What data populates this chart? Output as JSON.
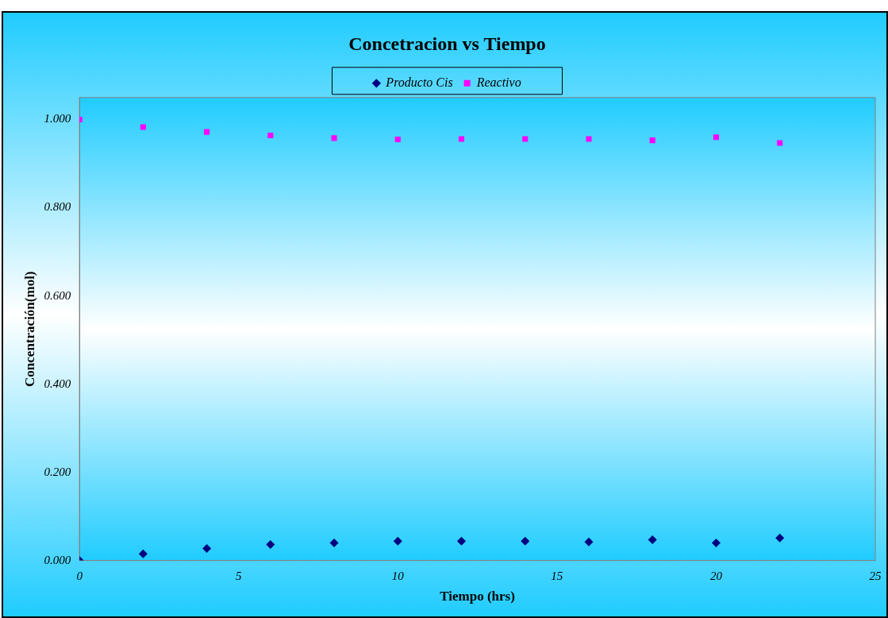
{
  "chart_data": {
    "type": "scatter",
    "title": "Concetracion vs Tiempo",
    "xlabel": "Tiempo (hrs)",
    "ylabel": "Concentración(mol)",
    "x": [
      0,
      2,
      4,
      6,
      8,
      10,
      12,
      14,
      16,
      18,
      20,
      22
    ],
    "series": [
      {
        "name": "Producto Cis",
        "color": "#000080",
        "marker": "diamond",
        "values": [
          0,
          0.015,
          0.027,
          0.036,
          0.04,
          0.044,
          0.044,
          0.044,
          0.042,
          0.047,
          0.04,
          0.051
        ]
      },
      {
        "name": "Reactivo",
        "color": "#ff00ff",
        "marker": "square",
        "values": [
          1.0,
          0.983,
          0.972,
          0.964,
          0.958,
          0.955,
          0.956,
          0.956,
          0.956,
          0.953,
          0.96,
          0.947
        ]
      }
    ],
    "xlim": [
      0,
      25
    ],
    "xticks": [
      0,
      5,
      10,
      15,
      20,
      25
    ],
    "ylim": [
      0,
      1.05
    ],
    "yticks": [
      {
        "value": 0,
        "label": "0.000"
      },
      {
        "value": 0.2,
        "label": "0.200"
      },
      {
        "value": 0.4,
        "label": "0.400"
      },
      {
        "value": 0.6,
        "label": "0.600"
      },
      {
        "value": 0.8,
        "label": "0.800"
      },
      {
        "value": 1,
        "label": "1.000"
      }
    ],
    "grid": false,
    "legend": "top"
  }
}
